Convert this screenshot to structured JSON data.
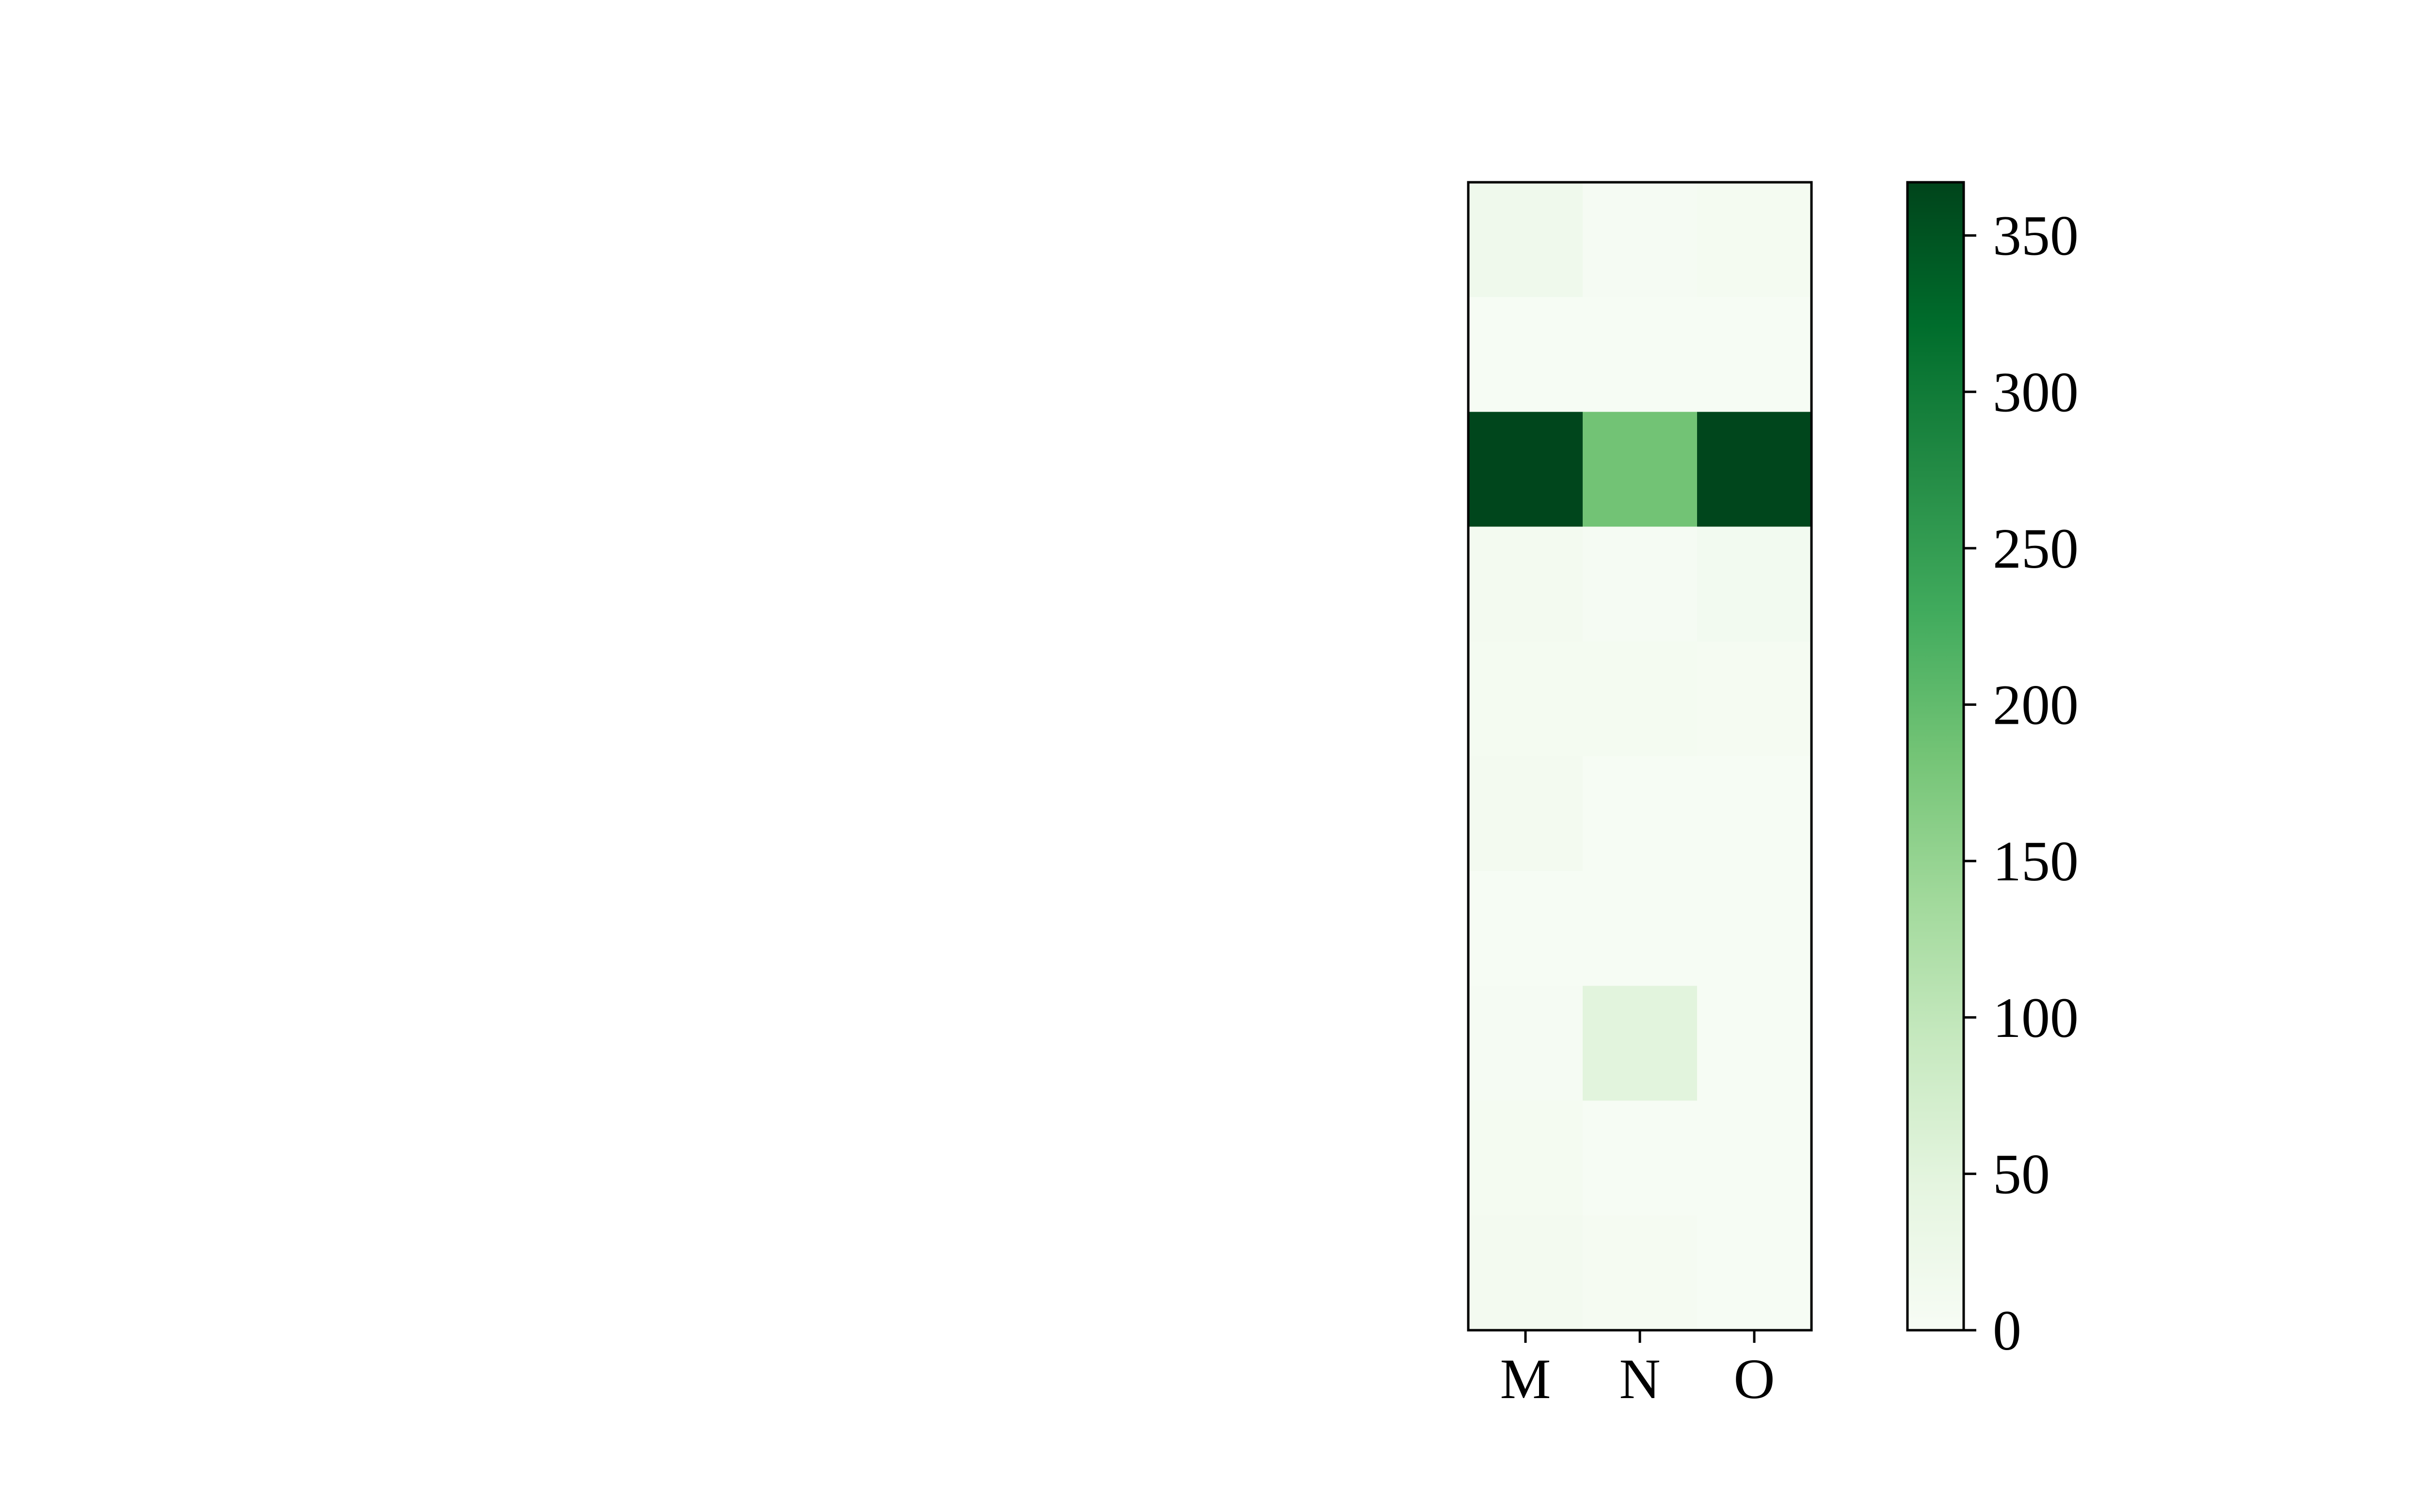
{
  "chart_data": {
    "type": "heatmap",
    "title": "",
    "xlabel": "",
    "ylabel": "",
    "x_categories": [
      "M",
      "N",
      "O"
    ],
    "y_categories": [],
    "rows": 10,
    "values": [
      [
        20,
        5,
        8
      ],
      [
        3,
        2,
        2
      ],
      [
        365,
        185,
        365
      ],
      [
        10,
        5,
        12
      ],
      [
        8,
        8,
        6
      ],
      [
        10,
        3,
        3
      ],
      [
        3,
        3,
        3
      ],
      [
        4,
        50,
        3
      ],
      [
        8,
        3,
        3
      ],
      [
        10,
        6,
        3
      ]
    ],
    "colorbar": {
      "colormap": "Greens",
      "min": 0,
      "max": 367,
      "ticks": [
        0,
        50,
        100,
        150,
        200,
        250,
        300,
        350
      ],
      "tick_labels": [
        "0",
        "50",
        "100",
        "150",
        "200",
        "250",
        "300",
        "350"
      ]
    },
    "legend": "none",
    "grid": false,
    "colors": {
      "cmap_stops": [
        "#f7fcf5",
        "#e5f5e0",
        "#c7e9c0",
        "#a1d99b",
        "#74c476",
        "#41ab5d",
        "#238b45",
        "#006d2c",
        "#00441b"
      ]
    }
  }
}
